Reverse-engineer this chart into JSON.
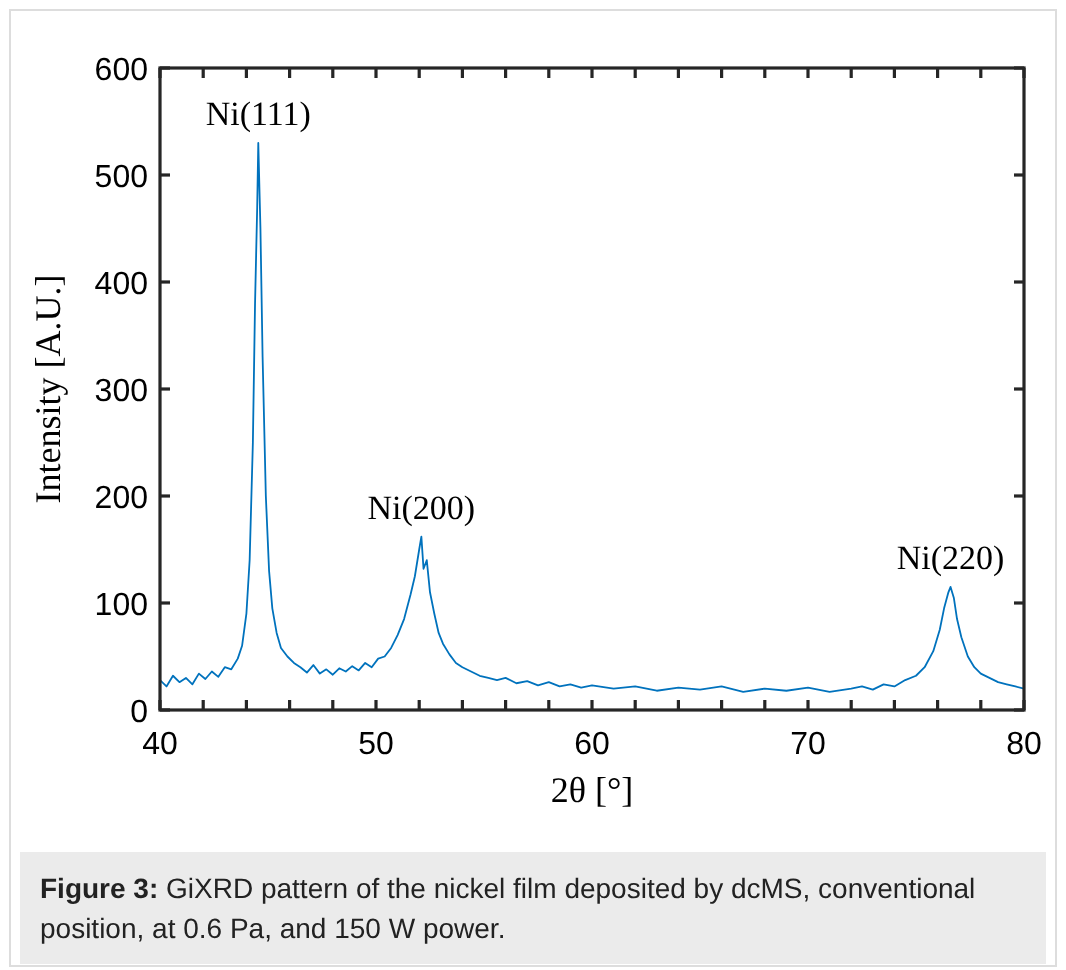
{
  "chart_data": {
    "type": "line",
    "xlabel": "2θ [°]",
    "ylabel": "Intensity [A.U.]",
    "xlim": [
      40,
      80
    ],
    "ylim": [
      0,
      600
    ],
    "xticks": [
      40,
      {
        "value": 42,
        "label": null
      },
      {
        "value": 44,
        "label": null
      },
      {
        "value": 46,
        "label": null
      },
      {
        "value": 48,
        "label": null
      },
      50,
      {
        "value": 52,
        "label": null
      },
      {
        "value": 54,
        "label": null
      },
      {
        "value": 56,
        "label": null
      },
      {
        "value": 58,
        "label": null
      },
      60,
      {
        "value": 62,
        "label": null
      },
      {
        "value": 64,
        "label": null
      },
      {
        "value": 66,
        "label": null
      },
      {
        "value": 68,
        "label": null
      },
      70,
      {
        "value": 72,
        "label": null
      },
      {
        "value": 74,
        "label": null
      },
      {
        "value": 76,
        "label": null
      },
      {
        "value": 78,
        "label": null
      },
      80
    ],
    "yticks": [
      0,
      100,
      200,
      300,
      400,
      500,
      600
    ],
    "grid": false,
    "marker": "none",
    "line_style": "solid",
    "annotations": [
      {
        "text": "Ni(111)",
        "x": 44.55,
        "y": 530
      },
      {
        "text": "Ni(200)",
        "x": 52.1,
        "y": 162
      },
      {
        "text": "Ni(220)",
        "x": 76.6,
        "y": 115
      },
      "Figure 3: GiXRD pattern of the nickel film deposited by dcMS, conventional position, at 0.6 Pa, and 150 W power."
    ],
    "x": [
      40,
      40.3,
      40.6,
      40.9,
      41.2,
      41.5,
      41.8,
      42.1,
      42.4,
      42.7,
      43,
      43.3,
      43.6,
      43.8,
      44,
      44.15,
      44.3,
      44.4,
      44.5,
      44.55,
      44.65,
      44.75,
      44.9,
      45.05,
      45.2,
      45.4,
      45.6,
      45.9,
      46.2,
      46.5,
      46.8,
      47.1,
      47.4,
      47.7,
      48,
      48.3,
      48.6,
      48.9,
      49.2,
      49.5,
      49.8,
      50.1,
      50.4,
      50.7,
      51,
      51.3,
      51.6,
      51.8,
      52,
      52.1,
      52.2,
      52.35,
      52.5,
      52.7,
      52.9,
      53.1,
      53.4,
      53.7,
      54,
      54.4,
      54.8,
      55.2,
      55.6,
      56,
      56.5,
      57,
      57.5,
      58,
      58.5,
      59,
      59.5,
      60,
      61,
      62,
      63,
      64,
      65,
      66,
      67,
      68,
      69,
      70,
      71,
      72,
      72.5,
      73,
      73.5,
      74,
      74.5,
      75,
      75.4,
      75.8,
      76.1,
      76.3,
      76.5,
      76.6,
      76.75,
      76.9,
      77.1,
      77.4,
      77.7,
      78,
      78.4,
      78.8,
      79.2,
      79.6,
      80
    ],
    "series": [
      {
        "color": "#0072bd",
        "values": [
          28,
          22,
          32,
          26,
          30,
          24,
          34,
          29,
          36,
          31,
          40,
          38,
          48,
          60,
          90,
          140,
          250,
          380,
          470,
          530,
          450,
          330,
          200,
          130,
          95,
          72,
          58,
          50,
          44,
          40,
          35,
          42,
          34,
          38,
          33,
          39,
          36,
          41,
          37,
          44,
          40,
          48,
          50,
          58,
          70,
          85,
          108,
          125,
          150,
          162,
          132,
          140,
          110,
          90,
          72,
          62,
          52,
          44,
          40,
          36,
          32,
          30,
          28,
          30,
          25,
          27,
          23,
          26,
          22,
          24,
          21,
          23,
          20,
          22,
          18,
          21,
          19,
          22,
          17,
          20,
          18,
          21,
          17,
          20,
          22,
          19,
          24,
          22,
          28,
          32,
          40,
          55,
          75,
          95,
          110,
          115,
          105,
          85,
          68,
          50,
          40,
          34,
          30,
          26,
          24,
          22,
          20
        ]
      }
    ]
  }
}
